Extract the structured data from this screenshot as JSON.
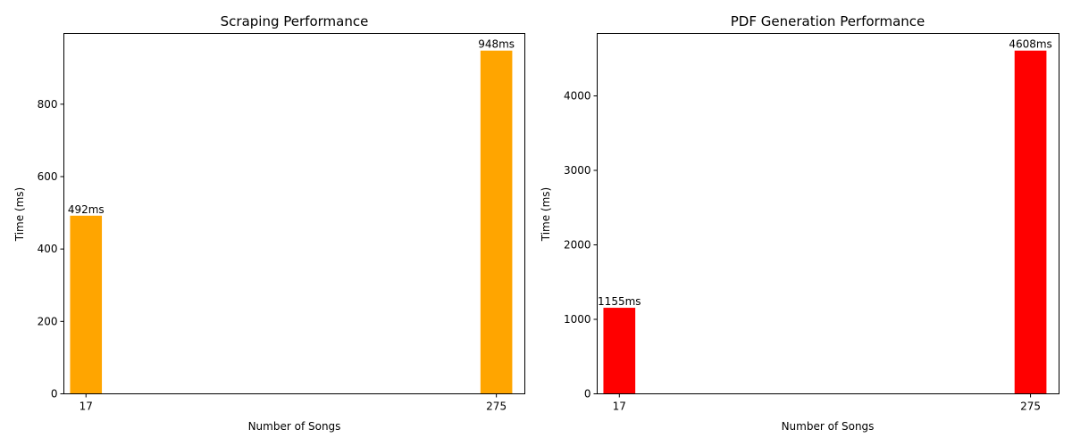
{
  "chart_data": [
    {
      "type": "bar",
      "title": "Scraping Performance",
      "xlabel": "Number of Songs",
      "ylabel": "Time (ms)",
      "x": [
        17,
        275
      ],
      "xlim": [
        3.1,
        292.9
      ],
      "values": [
        492,
        948
      ],
      "labels": [
        "492ms",
        "948ms"
      ],
      "ylim": [
        0,
        995.4
      ],
      "yticks": [
        0,
        200,
        400,
        600,
        800
      ],
      "color": "#ffa500",
      "bar_width": 20,
      "grid": false
    },
    {
      "type": "bar",
      "title": "PDF Generation Performance",
      "xlabel": "Number of Songs",
      "ylabel": "Time (ms)",
      "x": [
        17,
        275
      ],
      "xlim": [
        3.1,
        292.9
      ],
      "values": [
        1155,
        4608
      ],
      "labels": [
        "1155ms",
        "4608ms"
      ],
      "ylim": [
        0,
        4838.4
      ],
      "yticks": [
        0,
        1000,
        2000,
        3000,
        4000
      ],
      "color": "#ff0000",
      "bar_width": 20,
      "grid": false
    }
  ]
}
